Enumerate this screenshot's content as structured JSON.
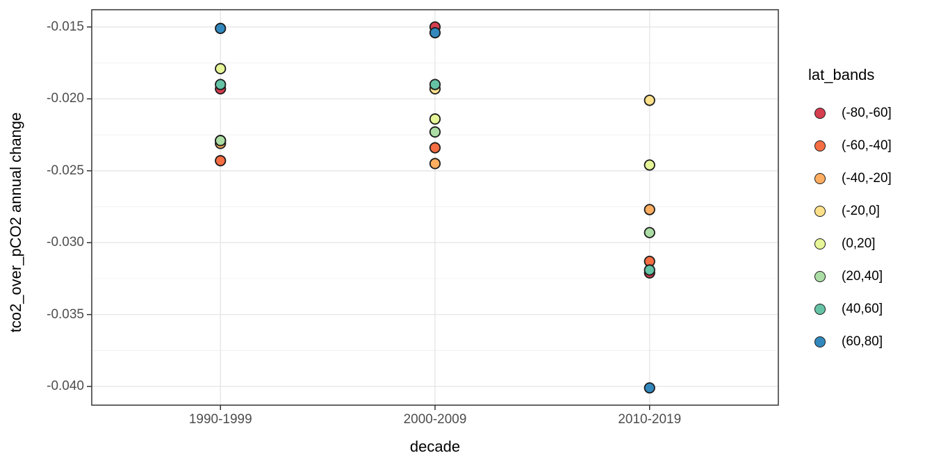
{
  "chart_data": {
    "type": "scatter",
    "title": "",
    "xlabel": "decade",
    "ylabel": "tco2_over_pCO2 annual change",
    "categories": [
      "1990-1999",
      "2000-2009",
      "2010-2019"
    ],
    "legend_title": "lat_bands",
    "legend_position": "right",
    "grid": true,
    "ylim": [
      -0.0413,
      -0.0138
    ],
    "y_major_ticks": [
      -0.015,
      -0.02,
      -0.025,
      -0.03,
      -0.035,
      -0.04
    ],
    "y_tick_labels": [
      "-0.015",
      "-0.020",
      "-0.025",
      "-0.030",
      "-0.035",
      "-0.040"
    ],
    "y_minor_ticks": [
      -0.0175,
      -0.0225,
      -0.0275,
      -0.0325,
      -0.0375
    ],
    "series": [
      {
        "name": "(-80,-60]",
        "color": "#D53E4F",
        "values": [
          -0.0193,
          -0.015,
          -0.0321
        ]
      },
      {
        "name": "(-60,-40]",
        "color": "#F46D43",
        "values": [
          -0.0243,
          -0.0234,
          -0.0313
        ]
      },
      {
        "name": "(-40,-20]",
        "color": "#FDAE61",
        "values": [
          -0.0231,
          -0.0245,
          -0.0277
        ]
      },
      {
        "name": "(-20,0]",
        "color": "#FEE08B",
        "values": [
          -0.0229,
          -0.0193,
          -0.0201
        ]
      },
      {
        "name": "(0,20]",
        "color": "#E6F598",
        "values": [
          -0.0179,
          -0.0214,
          -0.0246
        ]
      },
      {
        "name": "(20,40]",
        "color": "#ABDDA4",
        "values": [
          -0.0229,
          -0.0223,
          -0.0293
        ]
      },
      {
        "name": "(40,60]",
        "color": "#66C2A5",
        "values": [
          -0.019,
          -0.019,
          -0.0319
        ]
      },
      {
        "name": "(60,80]",
        "color": "#3288BD",
        "values": [
          -0.0151,
          -0.0154,
          -0.0401
        ]
      }
    ],
    "style": {
      "point_outline": "#1a1a1a",
      "panel_border": "#333333",
      "grid_major": "#e6e6e6",
      "grid_minor": "#f0f0f0",
      "tick_mark": "#333333",
      "tick_text": "#4d4d4d",
      "background": "#ffffff"
    }
  }
}
